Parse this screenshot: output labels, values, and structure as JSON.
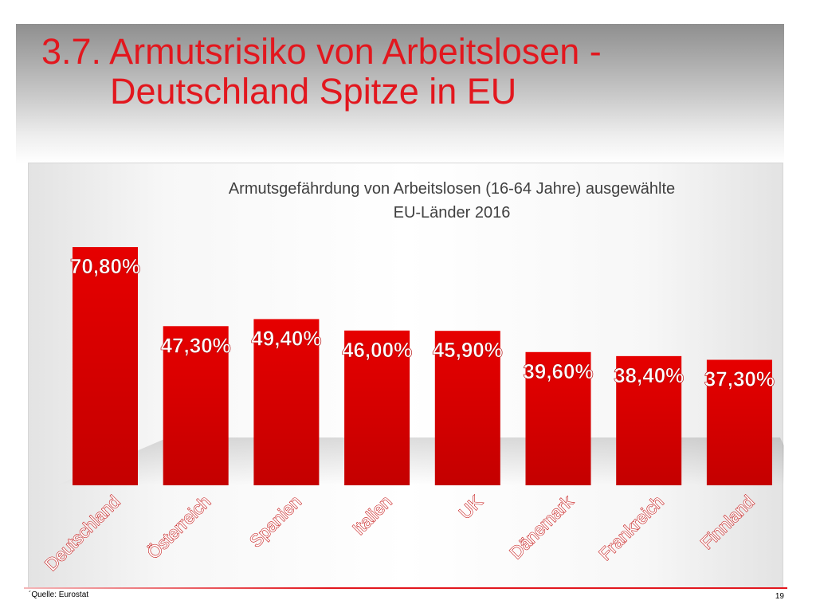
{
  "slide": {
    "title_line1": "3.7. Armutsrisiko von Arbeitslosen -",
    "title_line2": "Deutschland Spitze in EU",
    "source": "´Quelle: Eurostat",
    "page_number": "19"
  },
  "colors": {
    "title": "#e2171e",
    "bar": "#e60000",
    "bar_dark": "#c40000",
    "data_label": "#ffffff",
    "footer_rule": "#e2171e"
  },
  "chart_data": {
    "type": "bar",
    "title_line1": "Armutsgefährdung von Arbeitslosen (16-64 Jahre) ausgewählte",
    "title_line2": "EU-Länder 2016",
    "categories": [
      "Deutschland",
      "Österreich",
      "Spanien",
      "Italien",
      "UK",
      "Dänemark",
      "Frankreich",
      "Finnland"
    ],
    "values": [
      70.8,
      47.3,
      49.4,
      46.0,
      45.9,
      39.6,
      38.4,
      37.3
    ],
    "data_labels": [
      "70,80%",
      "47,30%",
      "49,40%",
      "46,00%",
      "45,90%",
      "39,60%",
      "38,40%",
      "37,30%"
    ],
    "xlabel": "",
    "ylabel": "",
    "ylim": [
      0,
      72
    ],
    "grid": false,
    "legend": "none",
    "value_unit": "%"
  }
}
